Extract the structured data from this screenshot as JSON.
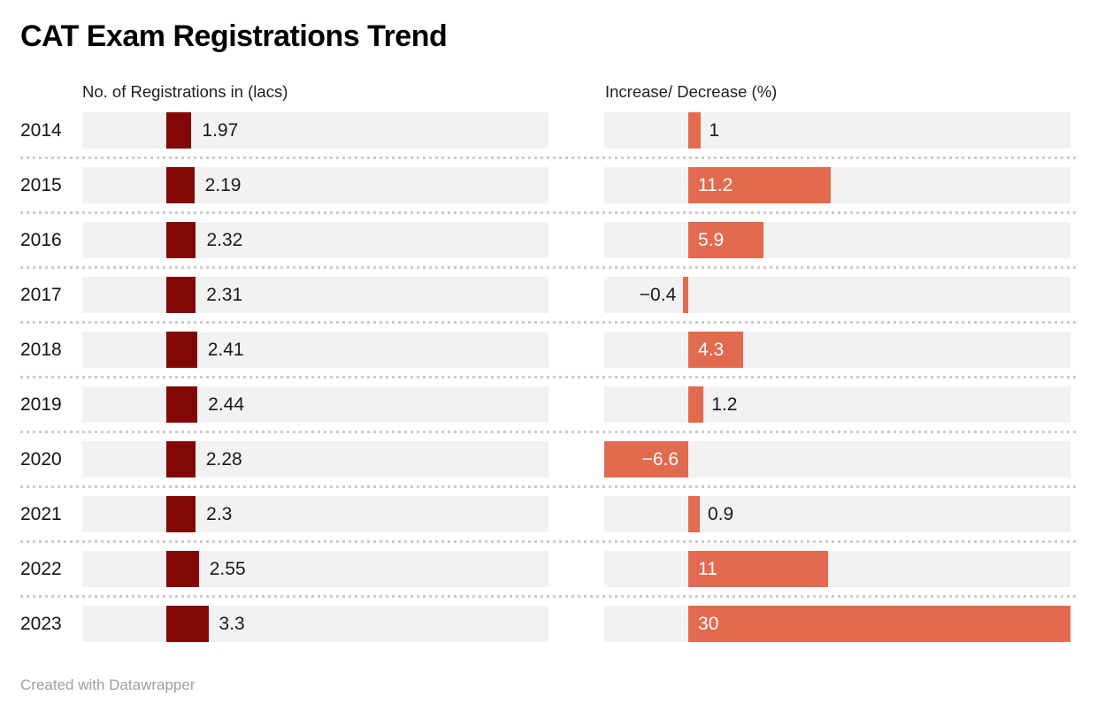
{
  "chart_data": {
    "type": "bar",
    "title": "CAT Exam Registrations Trend",
    "footer": "Created with Datawrapper",
    "categories": [
      "2014",
      "2015",
      "2016",
      "2017",
      "2018",
      "2019",
      "2020",
      "2021",
      "2022",
      "2023"
    ],
    "series": [
      {
        "name": "No. of Registrations in (lacs)",
        "values": [
          1.97,
          2.19,
          2.32,
          2.31,
          2.41,
          2.44,
          2.28,
          2.3,
          2.55,
          3.3
        ],
        "labels": [
          "1.97",
          "2.19",
          "2.32",
          "2.31",
          "2.41",
          "2.44",
          "2.28",
          "2.3",
          "2.55",
          "3.3"
        ],
        "color": "#820805"
      },
      {
        "name": "Increase/ Decrease (%)",
        "values": [
          1,
          11.2,
          5.9,
          -0.4,
          4.3,
          1.2,
          -6.6,
          0.9,
          11,
          30
        ],
        "labels": [
          "1",
          "11.2",
          "5.9",
          "−0.4",
          "4.3",
          "1.2",
          "−6.6",
          "0.9",
          "11",
          "30"
        ],
        "color": "#e26a4e"
      }
    ],
    "axis_range": [
      -6.6,
      30
    ],
    "track_color": "#f2f2f2",
    "inside_label_color": "#ffffff",
    "outside_label_color": "#1a1a1a",
    "legend": "none",
    "grid": "dotted-row-separators"
  }
}
